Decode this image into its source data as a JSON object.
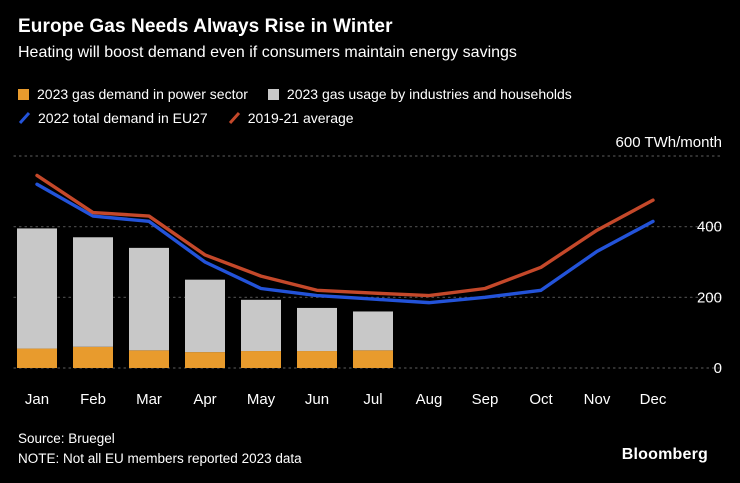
{
  "header": {
    "title": "Europe Gas Needs Always Rise in Winter",
    "subtitle": "Heating will boost demand even if consumers maintain energy savings"
  },
  "legend": {
    "items": [
      {
        "label": "2023 gas demand in power sector",
        "marker": "swatch",
        "color": "#E89B2D"
      },
      {
        "label": "2023 gas usage by industries and households",
        "marker": "swatch",
        "color": "#C8C8C8"
      },
      {
        "label": "2022 total demand in EU27",
        "marker": "line",
        "color": "#2353D9"
      },
      {
        "label": "2019-21 average",
        "marker": "line",
        "color": "#C4482A"
      }
    ]
  },
  "axis": {
    "unit_label": "600 TWh/month"
  },
  "chart_data": {
    "type": "combo",
    "categories": [
      "Jan",
      "Feb",
      "Mar",
      "Apr",
      "May",
      "Jun",
      "Jul",
      "Aug",
      "Sep",
      "Oct",
      "Nov",
      "Dec"
    ],
    "ylim": [
      0,
      600
    ],
    "yticks": [
      0,
      200,
      400,
      600
    ],
    "unit_label": "600 TWh/month",
    "grid": "dotted-horizontal",
    "legend_position": "top",
    "bar_series": [
      {
        "name": "2023 gas demand in power sector",
        "color": "#E89B2D",
        "values": [
          55,
          60,
          50,
          45,
          48,
          48,
          50,
          null,
          null,
          null,
          null,
          null
        ]
      },
      {
        "name": "2023 gas usage by industries and households",
        "color": "#C8C8C8",
        "stacked_on": "2023 gas demand in power sector",
        "values": [
          340,
          310,
          290,
          205,
          145,
          122,
          110,
          null,
          null,
          null,
          null,
          null
        ]
      }
    ],
    "line_series": [
      {
        "name": "2022 total demand in EU27",
        "color": "#2353D9",
        "values": [
          520,
          430,
          415,
          300,
          225,
          205,
          195,
          185,
          200,
          220,
          330,
          415
        ]
      },
      {
        "name": "2019-21 average",
        "color": "#C4482A",
        "values": [
          545,
          440,
          430,
          320,
          260,
          220,
          212,
          205,
          225,
          285,
          390,
          475
        ]
      }
    ]
  },
  "footer": {
    "source": "Source: Bruegel",
    "note": "NOTE: Not all EU members reported 2023 data",
    "brand": "Bloomberg"
  }
}
